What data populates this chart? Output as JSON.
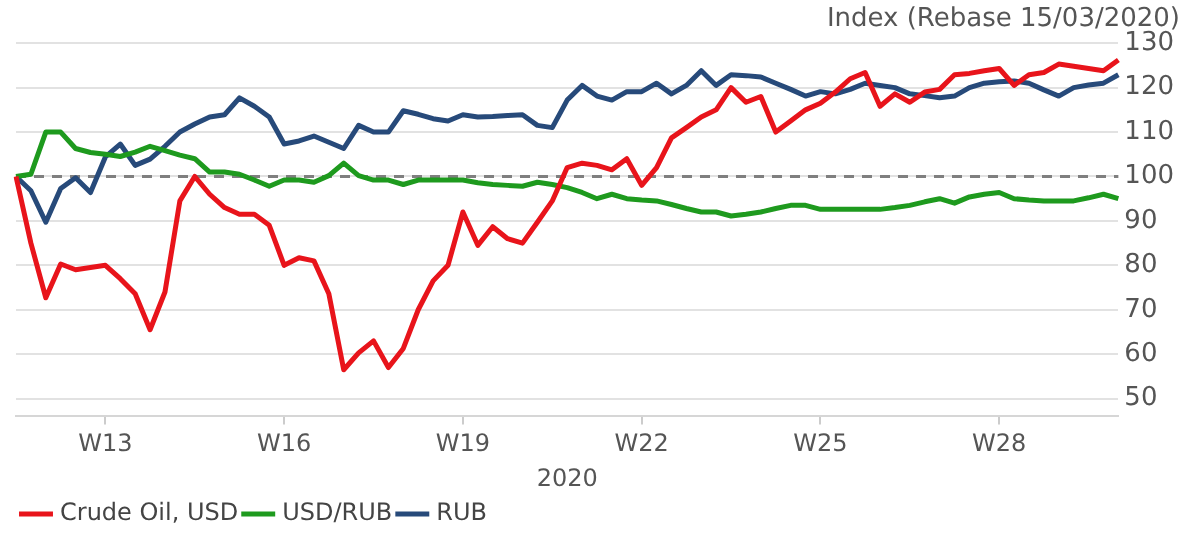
{
  "chart_data": {
    "type": "line",
    "title": "Index (Rebase 15/03/2020)",
    "xlabel": "2020",
    "categories": [
      null,
      null,
      null,
      null,
      null,
      null,
      "W13",
      null,
      null,
      null,
      null,
      null,
      null,
      null,
      null,
      null,
      null,
      null,
      "W16",
      null,
      null,
      null,
      null,
      null,
      null,
      null,
      null,
      null,
      null,
      null,
      "W19",
      null,
      null,
      null,
      null,
      null,
      null,
      null,
      null,
      null,
      null,
      null,
      "W22",
      null,
      null,
      null,
      null,
      null,
      null,
      null,
      null,
      null,
      null,
      null,
      "W25",
      null,
      null,
      null,
      null,
      null,
      null,
      null,
      null,
      null,
      null,
      null,
      "W28",
      null,
      null,
      null,
      null,
      null,
      null,
      null,
      null
    ],
    "ylim": [
      46,
      130
    ],
    "yticks": [
      50,
      60,
      70,
      80,
      90,
      100,
      110,
      120,
      130
    ],
    "grid": "y",
    "legend": "bottom left",
    "marker": "none",
    "line_style": "solid",
    "ref_lines": [
      {
        "axis": "y",
        "value": 100,
        "color": "#7f7f7f",
        "line_style": "dashed"
      }
    ],
    "series": [
      {
        "name": "Crude Oil, USD",
        "color": "#e8141b",
        "values": [
          100,
          85,
          72.7,
          80.3,
          79,
          79.5,
          80,
          77,
          73.6,
          65.5,
          74,
          94.5,
          100,
          96,
          93,
          91.5,
          91.5,
          89,
          80,
          81.7,
          81,
          73.6,
          56.5,
          60.3,
          63,
          57,
          61.3,
          70,
          76.5,
          80,
          92,
          84.5,
          88.7,
          86,
          85,
          89.7,
          94.5,
          102,
          103,
          102.5,
          101.5,
          104,
          98,
          102,
          108.7,
          111,
          113.4,
          115,
          120,
          116.7,
          118,
          110,
          112.5,
          115,
          116.5,
          119,
          122,
          123.4,
          115.8,
          118.6,
          116.7,
          119,
          119.6,
          122.9,
          123.2,
          123.8,
          124.3,
          120.5,
          122.9,
          123.4,
          125.3,
          124.8,
          124.3,
          123.8,
          126.2
        ]
      },
      {
        "name": "USD/RUB",
        "color": "#1e9a1e",
        "values": [
          100,
          100.5,
          110,
          110,
          106.3,
          105.4,
          105,
          104.5,
          105.5,
          106.8,
          105.8,
          104.8,
          104,
          101,
          101,
          100.5,
          99.2,
          97.8,
          99.2,
          99.2,
          98.7,
          100.2,
          103,
          100.2,
          99.2,
          99.2,
          98.2,
          99.2,
          99.2,
          99.2,
          99.2,
          98.6,
          98.2,
          98,
          97.8,
          98.7,
          98.2,
          97.5,
          96.4,
          95,
          96,
          95,
          94.7,
          94.5,
          93.7,
          92.8,
          92,
          92,
          91.1,
          91.5,
          92,
          92.8,
          93.5,
          93.5,
          92.6,
          92.6,
          92.6,
          92.6,
          92.6,
          93,
          93.5,
          94.3,
          95,
          94,
          95.4,
          96,
          96.4,
          95,
          94.7,
          94.5,
          94.5,
          94.5,
          95.2,
          96,
          95
        ]
      },
      {
        "name": "RUB",
        "color": "#274a7a",
        "values": [
          100,
          96.8,
          89.7,
          97.3,
          99.7,
          96.4,
          104.4,
          107.3,
          102.5,
          103.9,
          106.8,
          110,
          111.8,
          113.4,
          113.9,
          117.7,
          115.8,
          113.4,
          107.3,
          108,
          109.1,
          107.7,
          106.3,
          111.5,
          110,
          110,
          114.8,
          114,
          113,
          112.5,
          113.9,
          113.4,
          113.5,
          113.7,
          113.9,
          111.5,
          111,
          117.2,
          120.5,
          118.1,
          117.2,
          119.1,
          119.1,
          121,
          118.6,
          120.5,
          123.8,
          120.5,
          122.9,
          122.7,
          122.4,
          121,
          119.6,
          118.1,
          119.1,
          118.6,
          119.6,
          121,
          120.5,
          120,
          118.6,
          118.2,
          117.7,
          118.1,
          120,
          121,
          121.3,
          121.5,
          121,
          119.5,
          118.1,
          120,
          120.6,
          121,
          122.9
        ]
      }
    ]
  }
}
